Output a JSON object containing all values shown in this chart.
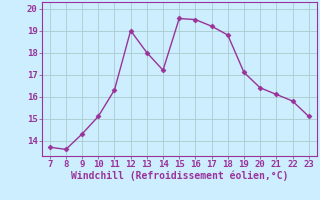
{
  "x": [
    7,
    8,
    9,
    10,
    11,
    12,
    13,
    14,
    15,
    16,
    17,
    18,
    19,
    20,
    21,
    22,
    23
  ],
  "y": [
    13.7,
    13.6,
    14.3,
    15.1,
    16.3,
    19.0,
    18.0,
    17.2,
    19.55,
    19.5,
    19.2,
    18.8,
    17.1,
    16.4,
    16.1,
    15.8,
    15.1
  ],
  "line_color": "#993399",
  "marker": "D",
  "marker_size": 2.5,
  "background_color": "#cceeff",
  "grid_color": "#aacccc",
  "xlabel": "Windchill (Refroidissement éolien,°C)",
  "xlabel_color": "#993399",
  "tick_color": "#993399",
  "xlim": [
    6.5,
    23.5
  ],
  "ylim": [
    13.3,
    20.3
  ],
  "yticks": [
    14,
    15,
    16,
    17,
    18,
    19,
    20
  ],
  "xticks": [
    7,
    8,
    9,
    10,
    11,
    12,
    13,
    14,
    15,
    16,
    17,
    18,
    19,
    20,
    21,
    22,
    23
  ],
  "tick_fontsize": 6.5,
  "xlabel_fontsize": 7.0,
  "linewidth": 1.0
}
